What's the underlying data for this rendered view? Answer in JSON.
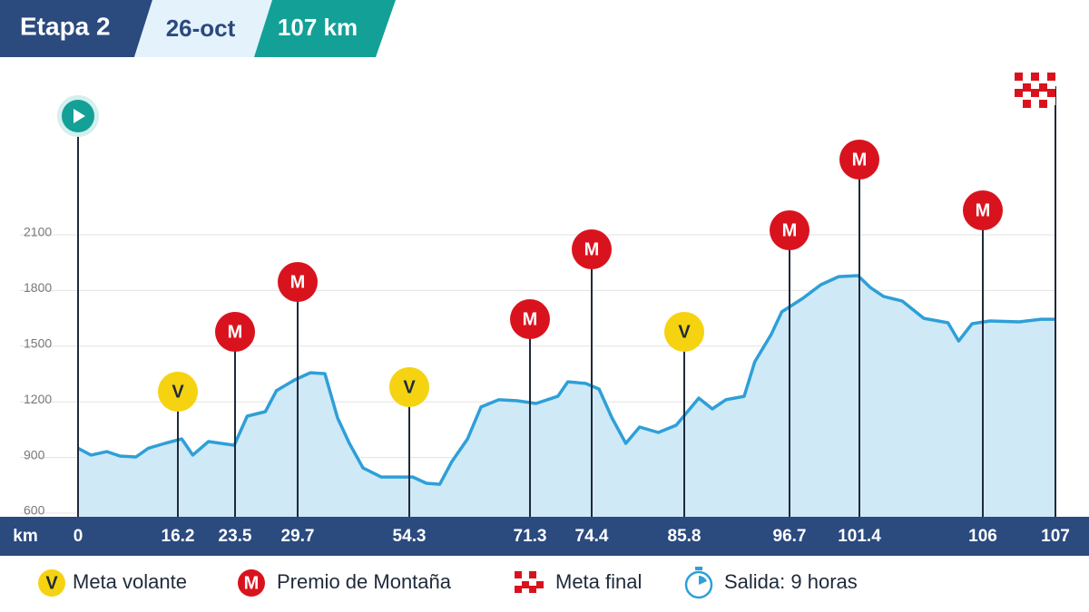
{
  "header": {
    "stage": "Etapa 2",
    "date": "26-oct",
    "distance": "107 km"
  },
  "chart_data": {
    "type": "elevation_profile",
    "x_label": "km",
    "x": [
      0,
      2.1,
      4.7,
      6.8,
      9.4,
      11.4,
      14.1,
      16.7,
      18.1,
      20.1,
      23.4,
      24.7,
      26.5,
      27.6,
      29.4,
      32.5,
      35.7,
      38.5,
      41.1,
      44.1,
      48.1,
      54.8,
      56.7,
      58.6,
      60.3,
      62.5,
      64.4,
      66.9,
      69.5,
      71.6,
      72.7,
      73.2,
      74.1,
      75.3,
      76.9,
      78.6,
      80.3,
      82.6,
      84.8,
      87.3,
      88.7,
      90.1,
      92.0,
      93.1,
      94.8,
      95.9,
      97.6,
      98.8,
      100.0,
      101.3,
      101.8,
      102.3,
      103.0,
      103.8,
      104.7,
      105.1,
      105.6,
      106.1,
      106.5,
      106.8,
      107
    ],
    "values": [
      950,
      913,
      932,
      908,
      903,
      950,
      976,
      1000,
      913,
      986,
      966,
      1123,
      1147,
      1260,
      1318,
      1357,
      1352,
      1113,
      976,
      844,
      795,
      795,
      761,
      756,
      878,
      1000,
      1172,
      1211,
      1206,
      1191,
      1230,
      1308,
      1299,
      1269,
      1113,
      976,
      1064,
      1035,
      1074,
      1220,
      1162,
      1211,
      1230,
      1416,
      1563,
      1685,
      1758,
      1831,
      1875,
      1880,
      1817,
      1768,
      1743,
      1650,
      1626,
      1528,
      1621,
      1636,
      1631,
      1645,
      1645
    ],
    "color": "#2e9fd8",
    "fill": "#cfe9f7",
    "ylim": [
      600,
      2100
    ],
    "yticks": [
      600,
      900,
      1200,
      1500,
      1800,
      2100
    ],
    "grid": true,
    "xticks": [
      0,
      16.2,
      23.5,
      29.7,
      54.3,
      71.3,
      74.4,
      85.8,
      96.7,
      101.4,
      106,
      107
    ],
    "xtick_markers": [
      null,
      "V",
      "M",
      "M",
      "V",
      "M",
      "M",
      "V",
      "M",
      "M",
      "M",
      null
    ]
  },
  "legend": [
    {
      "symbol": "V",
      "label": "Meta volante"
    },
    {
      "symbol": "M",
      "label": "Premio de Montaña"
    },
    {
      "label": "Meta final"
    },
    {
      "label": "Salida: 9 horas"
    }
  ]
}
